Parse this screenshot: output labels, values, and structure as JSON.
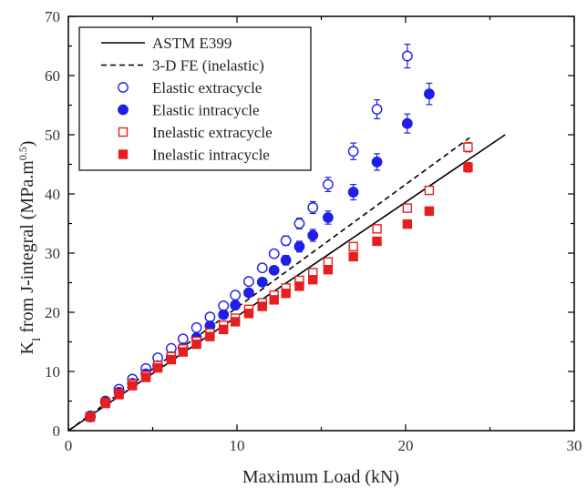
{
  "chart_data": {
    "type": "scatter",
    "xlabel": "Maximum Load (kN)",
    "ylabel": {
      "main": "K",
      "sub": "I",
      "mid": " from J-integral (MPa.m",
      "sup": "0.5",
      "end": ")"
    },
    "xlim": [
      0,
      30
    ],
    "ylim": [
      0,
      70
    ],
    "xticks": [
      0,
      10,
      20,
      30
    ],
    "yticks": [
      0,
      10,
      20,
      30,
      40,
      50,
      60,
      70
    ],
    "grid": false,
    "legend_position": "top-left",
    "series": [
      {
        "name": "ASTM E399",
        "kind": "line",
        "style": "solid",
        "color": "#000000",
        "x": [
          0,
          25.9
        ],
        "y": [
          0,
          50.0
        ]
      },
      {
        "name": "3-D FE (inelastic)",
        "kind": "line",
        "style": "dashed",
        "color": "#000000",
        "x": [
          0,
          23.8
        ],
        "y": [
          0,
          49.5
        ]
      },
      {
        "name": "Elastic extracycle",
        "kind": "marker",
        "marker": "circle-open",
        "color": "#1f1fe6",
        "x": [
          1.3,
          2.2,
          3.0,
          3.8,
          4.6,
          5.3,
          6.1,
          6.8,
          7.6,
          8.4,
          9.2,
          9.9,
          10.7,
          11.5,
          12.2,
          12.9,
          13.7,
          14.5,
          15.4,
          16.9,
          18.3,
          20.1
        ],
        "y": [
          2.5,
          5.0,
          7.0,
          8.7,
          10.5,
          12.3,
          13.9,
          15.5,
          17.4,
          19.2,
          21.1,
          22.9,
          25.2,
          27.5,
          29.9,
          32.1,
          35.0,
          37.7,
          41.6,
          47.2,
          54.3,
          63.3
        ],
        "err": [
          0,
          0,
          0,
          0,
          0,
          0,
          0,
          0,
          0,
          0,
          0,
          0,
          0,
          0,
          0,
          0.8,
          0.9,
          1.0,
          1.2,
          1.4,
          1.6,
          2.0
        ]
      },
      {
        "name": "Elastic intracycle",
        "kind": "marker",
        "marker": "circle-filled",
        "color": "#1f1fe6",
        "x": [
          1.3,
          2.2,
          3.0,
          3.8,
          4.6,
          5.3,
          6.1,
          6.8,
          7.6,
          8.4,
          9.2,
          9.9,
          10.7,
          11.5,
          12.2,
          12.9,
          13.7,
          14.5,
          15.4,
          16.9,
          18.3,
          20.1,
          21.4
        ],
        "y": [
          2.3,
          4.8,
          6.5,
          8.0,
          9.6,
          11.0,
          12.5,
          14.0,
          15.7,
          17.7,
          19.6,
          21.2,
          23.3,
          25.1,
          27.1,
          28.8,
          31.1,
          33.0,
          36.0,
          40.3,
          45.4,
          51.9,
          56.9
        ],
        "err": [
          0,
          0,
          0,
          0,
          0,
          0,
          0,
          0,
          0,
          0,
          0,
          0,
          0,
          0,
          0,
          0.8,
          0.9,
          1.0,
          1.1,
          1.3,
          1.4,
          1.6,
          1.8
        ]
      },
      {
        "name": "Inelastic extracycle",
        "kind": "marker",
        "marker": "square-open",
        "color": "#e61e1e",
        "x": [
          1.3,
          2.2,
          3.0,
          3.8,
          4.6,
          5.3,
          6.1,
          6.8,
          7.6,
          8.4,
          9.2,
          9.9,
          10.7,
          11.5,
          12.2,
          12.9,
          13.7,
          14.5,
          15.4,
          16.9,
          18.3,
          20.1,
          21.4,
          23.7
        ],
        "y": [
          2.4,
          4.8,
          6.3,
          7.9,
          9.3,
          11.0,
          12.5,
          13.8,
          15.1,
          16.5,
          17.8,
          19.0,
          20.5,
          21.6,
          22.9,
          24.1,
          25.4,
          26.7,
          28.5,
          31.1,
          34.1,
          37.6,
          40.6,
          47.9
        ],
        "err": [
          0,
          0,
          0,
          0,
          0,
          0,
          0,
          0,
          0,
          0,
          0,
          0,
          0,
          0,
          0,
          0,
          0,
          0,
          0,
          0,
          0,
          0,
          0.6,
          0.8
        ]
      },
      {
        "name": "Inelastic intracycle",
        "kind": "marker",
        "marker": "square-filled",
        "color": "#e61e1e",
        "x": [
          1.3,
          2.2,
          3.0,
          3.8,
          4.6,
          5.3,
          6.1,
          6.8,
          7.6,
          8.4,
          9.2,
          9.9,
          10.7,
          11.5,
          12.2,
          12.9,
          13.7,
          14.5,
          15.4,
          16.9,
          18.3,
          20.1,
          21.4,
          23.7
        ],
        "y": [
          2.3,
          4.6,
          6.1,
          7.6,
          9.0,
          10.6,
          12.0,
          13.3,
          14.6,
          15.9,
          17.1,
          18.4,
          19.8,
          21.0,
          22.1,
          23.2,
          24.4,
          25.5,
          27.2,
          29.4,
          32.0,
          34.9,
          37.1,
          44.5
        ],
        "err": [
          0,
          0,
          0,
          0,
          0,
          0,
          0,
          0,
          0,
          0,
          0,
          0,
          0,
          0,
          0,
          0,
          0,
          0,
          0,
          0,
          0,
          0,
          0.6,
          0.8
        ]
      }
    ]
  }
}
